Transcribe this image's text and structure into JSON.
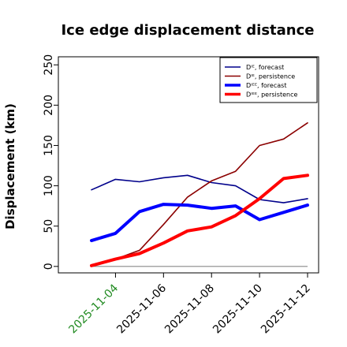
{
  "chart_data": {
    "type": "line",
    "title": "Ice edge displacement distance",
    "xlabel": "",
    "ylabel": "Displacement (km)",
    "x": [
      "2025-11-03",
      "2025-11-04",
      "2025-11-05",
      "2025-11-06",
      "2025-11-07",
      "2025-11-08",
      "2025-11-09",
      "2025-11-10",
      "2025-11-11",
      "2025-11-12"
    ],
    "xticks": [
      "2025-11-04",
      "2025-11-06",
      "2025-11-08",
      "2025-11-10",
      "2025-11-12"
    ],
    "xtick_colors": [
      "#228b22",
      "#000000",
      "#000000",
      "#000000",
      "#000000"
    ],
    "ylim": [
      -8,
      260
    ],
    "yticks": [
      0,
      50,
      100,
      150,
      200,
      250
    ],
    "grid": false,
    "legend_position": "top-right",
    "series": [
      {
        "name": "Dᴵᴱ, forecast",
        "color": "#00008b",
        "width": "thin",
        "values": [
          95,
          108,
          105,
          110,
          113,
          104,
          100,
          83,
          79,
          84
        ]
      },
      {
        "name": "Dᴵᴱ, persistence",
        "color": "#8b0000",
        "width": "thin",
        "values": [
          1,
          9,
          20,
          52,
          86,
          106,
          118,
          150,
          158,
          178
        ]
      },
      {
        "name": "Dᴵᴱᴱ, forecast",
        "color": "#0000ff",
        "width": "thick",
        "values": [
          32,
          41,
          68,
          77,
          76,
          72,
          75,
          58,
          67,
          76
        ]
      },
      {
        "name": "Dᴵᴱᴱ, persistence",
        "color": "#ff0000",
        "width": "thick",
        "values": [
          1,
          9,
          16,
          29,
          44,
          49,
          63,
          84,
          109,
          113
        ]
      }
    ],
    "baseline": {
      "value": 0,
      "color": "#888888"
    }
  }
}
